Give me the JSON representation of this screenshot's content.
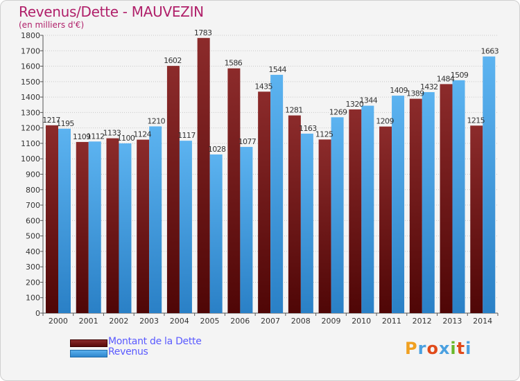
{
  "header": {
    "title": "Revenus/Dette - MAUVEZIN",
    "subtitle": "(en milliers d'€)"
  },
  "legend": {
    "dette_label": "Montant de la Dette",
    "revenus_label": "Revenus"
  },
  "brand": {
    "text": "Proxiti",
    "letter_colors": [
      "#f0a020",
      "#4aa0e0",
      "#e04a1a",
      "#4aa0e0",
      "#6ab82a",
      "#e04a1a",
      "#4aa0e0"
    ]
  },
  "colors": {
    "dette": "#7a1e1e",
    "revenus": "#4aa8ea",
    "title": "#b0206a",
    "legend_text": "#5a5aff"
  },
  "chart_data": {
    "type": "bar",
    "categories": [
      "2000",
      "2001",
      "2002",
      "2003",
      "2004",
      "2005",
      "2006",
      "2007",
      "2008",
      "2009",
      "2010",
      "2011",
      "2012",
      "2013",
      "2014"
    ],
    "series": [
      {
        "name": "Montant de la Dette",
        "values": [
          1217,
          1109,
          1133,
          1124,
          1602,
          1783,
          1586,
          1435,
          1281,
          1125,
          1320,
          1209,
          1389,
          1484,
          1215
        ],
        "labels": [
          "1217",
          "1109",
          "1133",
          "1124",
          "1602",
          "1783",
          "1586",
          "1435",
          "1281",
          "1125",
          "1320",
          "1209",
          "1389",
          "1484",
          "1215"
        ]
      },
      {
        "name": "Revenus",
        "values": [
          1195,
          1112,
          1100,
          1210,
          1117,
          1028,
          1077,
          1544,
          1163,
          1269,
          1344,
          1409,
          1432,
          1509,
          1663
        ],
        "labels": [
          "1195",
          "1112",
          "1100",
          "1210",
          "1117",
          "1028",
          "1077",
          "1544",
          "1163",
          "1269",
          "1344",
          "1409",
          "1432",
          "1509",
          "1663"
        ]
      }
    ],
    "ylim": [
      0,
      1800
    ],
    "ytick_step": 100,
    "grid": true,
    "legend_position": "bottom-left"
  }
}
